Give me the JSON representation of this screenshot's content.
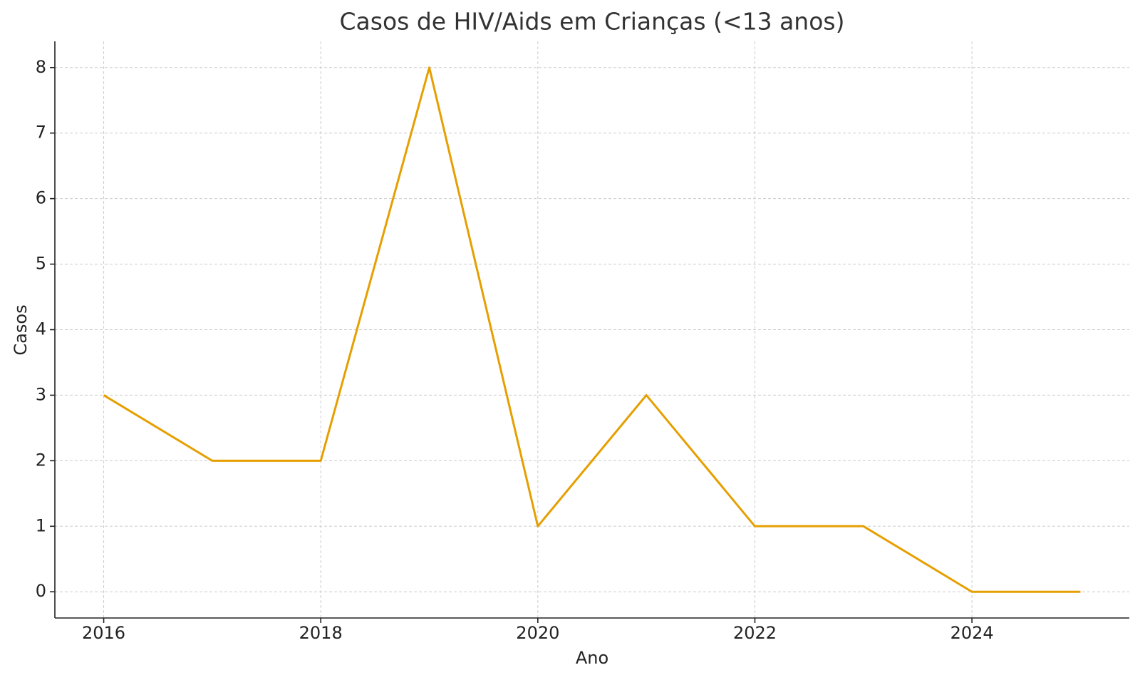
{
  "chart_data": {
    "type": "line",
    "title": "Casos de HIV/Aids em Crianças (<13 anos)",
    "x_label": "Ano",
    "y_label": "Casos",
    "x": [
      2016,
      2017,
      2018,
      2019,
      2020,
      2021,
      2022,
      2023,
      2024,
      2025
    ],
    "series": [
      {
        "name": "Casos",
        "color": "#e69f00",
        "values": [
          3,
          2,
          2,
          8,
          1,
          3,
          1,
          1,
          0,
          0
        ]
      }
    ],
    "xlim": [
      2015.55,
      2025.45
    ],
    "xticks": [
      2016,
      2018,
      2020,
      2022,
      2024
    ],
    "ylim": [
      -0.4,
      8.4
    ],
    "yticks": [
      0,
      1,
      2,
      3,
      4,
      5,
      6,
      7,
      8
    ],
    "grid": true
  }
}
